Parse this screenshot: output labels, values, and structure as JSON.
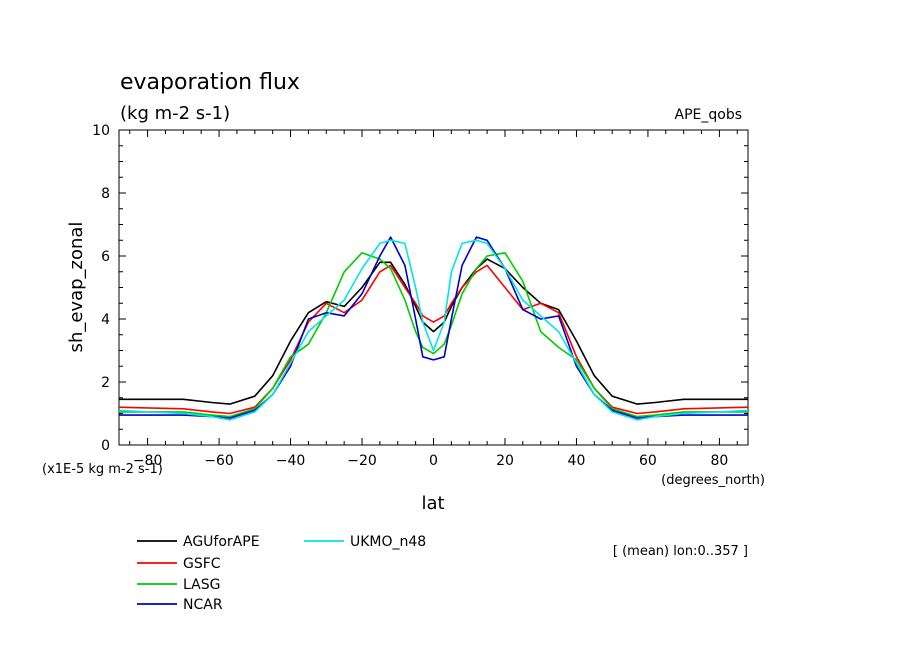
{
  "chart_data": {
    "type": "line",
    "title": "evaporation flux",
    "subtitle": "(kg m-2 s-1)",
    "experiment": "APE_qobs",
    "ylabel": "sh_evap_zonal",
    "y_unit_note": "(x1E-5 kg m-2 s-1)",
    "xlabel": "lat",
    "x_unit_note": "(degrees_north)",
    "mean_note": "[ (mean) lon:0..357 ]",
    "xlim": [
      -88,
      88
    ],
    "ylim": [
      0,
      10
    ],
    "x_ticks": [
      -80,
      -60,
      -40,
      -20,
      0,
      20,
      40,
      60,
      80
    ],
    "x_tick_labels": [
      "-80",
      "-60",
      "-40",
      "-20",
      "0",
      "20",
      "40",
      "60",
      "80"
    ],
    "y_ticks": [
      0,
      2,
      4,
      6,
      8,
      10
    ],
    "y_tick_labels": [
      "0",
      "2",
      "4",
      "6",
      "8",
      "10"
    ],
    "grid": false,
    "legend_position": "bottom-left",
    "series": [
      {
        "name": "AGUforAPE",
        "color": "#000000",
        "x": [
          -88,
          -70,
          -62,
          -57,
          -50,
          -45,
          -40,
          -35,
          -30,
          -25,
          -20,
          -15,
          -12,
          -8,
          -5,
          -3,
          0,
          3,
          5,
          8,
          12,
          15,
          20,
          25,
          30,
          35,
          40,
          45,
          50,
          57,
          62,
          70,
          88
        ],
        "y": [
          1.45,
          1.45,
          1.35,
          1.3,
          1.55,
          2.2,
          3.3,
          4.2,
          4.55,
          4.4,
          5.0,
          5.8,
          5.8,
          5.1,
          4.4,
          3.9,
          3.6,
          3.9,
          4.4,
          5.0,
          5.6,
          5.9,
          5.6,
          5.0,
          4.5,
          4.3,
          3.3,
          2.2,
          1.55,
          1.3,
          1.35,
          1.45,
          1.45
        ]
      },
      {
        "name": "GSFC",
        "color": "#ff0000",
        "x": [
          -88,
          -70,
          -62,
          -57,
          -50,
          -45,
          -40,
          -35,
          -30,
          -25,
          -20,
          -15,
          -12,
          -8,
          -5,
          -3,
          0,
          3,
          5,
          8,
          12,
          15,
          20,
          25,
          30,
          35,
          40,
          45,
          50,
          57,
          62,
          70,
          88
        ],
        "y": [
          1.2,
          1.15,
          1.05,
          1.0,
          1.2,
          1.8,
          2.7,
          3.9,
          4.5,
          4.2,
          4.6,
          5.5,
          5.7,
          5.0,
          4.5,
          4.1,
          3.9,
          4.1,
          4.5,
          5.0,
          5.5,
          5.7,
          5.0,
          4.3,
          4.5,
          4.2,
          2.8,
          1.8,
          1.2,
          1.0,
          1.05,
          1.15,
          1.2
        ]
      },
      {
        "name": "LASG",
        "color": "#00cc00",
        "x": [
          -88,
          -70,
          -62,
          -57,
          -50,
          -45,
          -40,
          -35,
          -30,
          -25,
          -20,
          -15,
          -12,
          -8,
          -5,
          -3,
          0,
          3,
          5,
          8,
          12,
          15,
          20,
          25,
          30,
          35,
          40,
          45,
          50,
          57,
          62,
          70,
          88
        ],
        "y": [
          1.05,
          1.05,
          0.95,
          0.9,
          1.15,
          1.8,
          2.8,
          3.2,
          4.2,
          5.5,
          6.1,
          5.9,
          5.6,
          4.6,
          3.6,
          3.1,
          2.9,
          3.2,
          3.8,
          4.8,
          5.6,
          6.0,
          6.1,
          5.2,
          3.6,
          3.1,
          2.7,
          1.8,
          1.15,
          0.9,
          0.95,
          1.05,
          1.05
        ]
      },
      {
        "name": "NCAR",
        "color": "#0000cc",
        "x": [
          -88,
          -70,
          -62,
          -57,
          -50,
          -45,
          -40,
          -35,
          -30,
          -25,
          -20,
          -15,
          -12,
          -8,
          -5,
          -3,
          0,
          3,
          5,
          8,
          12,
          15,
          20,
          25,
          30,
          35,
          40,
          45,
          50,
          57,
          62,
          70,
          88
        ],
        "y": [
          0.95,
          0.95,
          0.9,
          0.85,
          1.1,
          1.6,
          2.5,
          4.0,
          4.2,
          4.1,
          4.8,
          6.0,
          6.6,
          5.7,
          4.0,
          2.8,
          2.7,
          2.8,
          4.0,
          5.7,
          6.6,
          6.5,
          5.6,
          4.3,
          4.0,
          4.1,
          2.5,
          1.6,
          1.1,
          0.85,
          0.9,
          0.95,
          0.95
        ]
      },
      {
        "name": "UKMO_n48",
        "color": "#00e6e6",
        "x": [
          -88,
          -70,
          -62,
          -57,
          -50,
          -45,
          -40,
          -35,
          -30,
          -25,
          -20,
          -15,
          -12,
          -8,
          -5,
          -3,
          0,
          3,
          5,
          8,
          12,
          15,
          20,
          25,
          30,
          35,
          40,
          45,
          50,
          57,
          62,
          70,
          88
        ],
        "y": [
          1.1,
          1.0,
          0.9,
          0.8,
          1.05,
          1.6,
          2.6,
          3.6,
          4.1,
          4.6,
          5.6,
          6.4,
          6.5,
          6.4,
          5.0,
          3.9,
          3.0,
          3.9,
          5.5,
          6.4,
          6.5,
          6.4,
          5.6,
          4.6,
          4.1,
          3.6,
          2.6,
          1.6,
          1.05,
          0.8,
          0.9,
          1.0,
          1.1
        ]
      }
    ]
  }
}
